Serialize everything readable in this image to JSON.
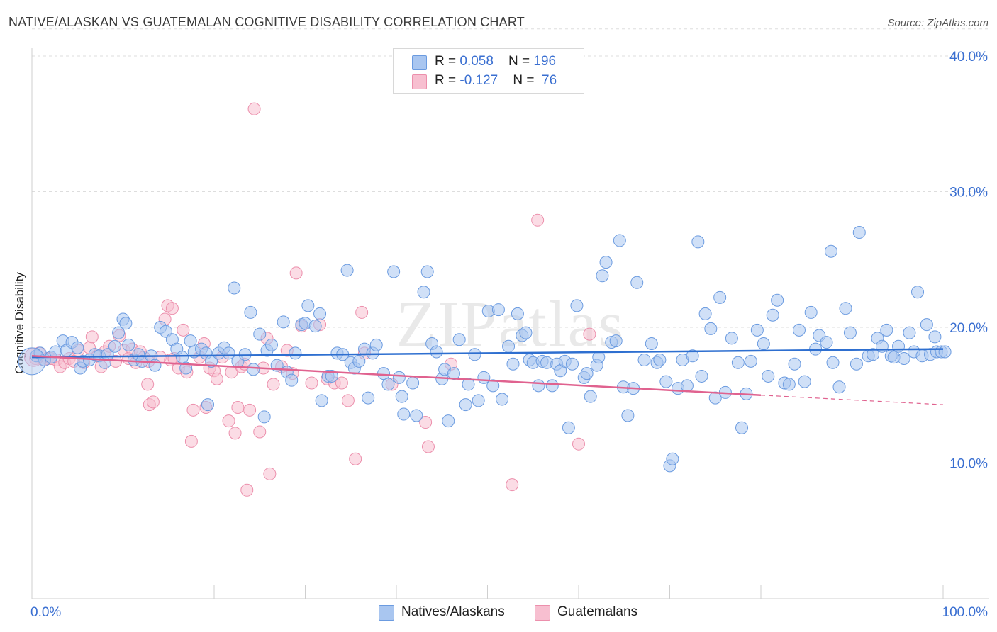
{
  "title": "NATIVE/ALASKAN VS GUATEMALAN COGNITIVE DISABILITY CORRELATION CHART",
  "source": "Source: ZipAtlas.com",
  "watermark": "ZIPatlas",
  "colors": {
    "blue_fill": "#a9c6f0",
    "blue_stroke": "#6b9be0",
    "blue_line": "#2e6fd0",
    "pink_fill": "#f7bfd0",
    "pink_stroke": "#ec8fac",
    "pink_line": "#e0628f",
    "tick_label": "#3a6fd1",
    "grid": "#dddddd"
  },
  "legend": {
    "rows": [
      {
        "r_label": "R = ",
        "r_value": "0.058",
        "n_label": "N = ",
        "n_value": "196"
      },
      {
        "r_label": "R = ",
        "r_value": "-0.127",
        "n_label": "N = ",
        "n_value": " 76"
      }
    ]
  },
  "bottom_legend": [
    "Natives/Alaskans",
    "Guatemalans"
  ],
  "chart_data": {
    "type": "scatter",
    "title": "NATIVE/ALASKAN VS GUATEMALAN COGNITIVE DISABILITY CORRELATION CHART",
    "xlabel": "",
    "ylabel": "Cognitive Disability",
    "xlim": [
      0,
      100
    ],
    "ylim": [
      0,
      42
    ],
    "x_tick_labels": [
      "0.0%",
      "100.0%"
    ],
    "y_ticks": [
      10,
      20,
      30,
      40
    ],
    "y_tick_labels": [
      "10.0%",
      "20.0%",
      "30.0%",
      "40.0%"
    ],
    "grid": true,
    "legend_position": "top-center",
    "series": [
      {
        "name": "Natives/Alaskans",
        "R": 0.058,
        "N": 196,
        "trend": {
          "x": [
            0,
            100
          ],
          "y": [
            17.8,
            18.4
          ]
        },
        "points": [
          [
            0.5,
            17.9
          ],
          [
            0.9,
            18.1
          ],
          [
            1.4,
            17.6
          ],
          [
            2.1,
            17.8
          ],
          [
            2.6,
            18.2
          ],
          [
            3.4,
            19.0
          ],
          [
            3.8,
            18.3
          ],
          [
            4.4,
            18.9
          ],
          [
            5.0,
            18.5
          ],
          [
            5.3,
            17.0
          ],
          [
            5.6,
            17.5
          ],
          [
            6.3,
            17.6
          ],
          [
            6.9,
            18.0
          ],
          [
            7.4,
            17.9
          ],
          [
            8.0,
            17.4
          ],
          [
            8.3,
            18.0
          ],
          [
            9.1,
            18.6
          ],
          [
            9.5,
            19.6
          ],
          [
            10.0,
            20.6
          ],
          [
            10.3,
            20.3
          ],
          [
            10.6,
            18.7
          ],
          [
            11.2,
            17.6
          ],
          [
            11.7,
            18.0
          ],
          [
            12.1,
            17.5
          ],
          [
            13.1,
            17.9
          ],
          [
            13.5,
            17.2
          ],
          [
            14.1,
            20.0
          ],
          [
            14.7,
            19.7
          ],
          [
            15.4,
            19.1
          ],
          [
            15.9,
            18.4
          ],
          [
            16.5,
            17.8
          ],
          [
            16.9,
            17.0
          ],
          [
            17.4,
            19.0
          ],
          [
            17.8,
            18.2
          ],
          [
            18.6,
            18.4
          ],
          [
            19.1,
            18.1
          ],
          [
            19.3,
            14.3
          ],
          [
            19.7,
            17.5
          ],
          [
            20.5,
            18.1
          ],
          [
            21.1,
            18.5
          ],
          [
            21.6,
            18.1
          ],
          [
            22.2,
            22.9
          ],
          [
            22.6,
            17.5
          ],
          [
            23.4,
            18.0
          ],
          [
            24.0,
            21.1
          ],
          [
            24.3,
            16.9
          ],
          [
            25.0,
            19.5
          ],
          [
            25.5,
            13.4
          ],
          [
            25.8,
            18.3
          ],
          [
            26.3,
            18.7
          ],
          [
            26.9,
            17.2
          ],
          [
            27.6,
            20.4
          ],
          [
            28.0,
            16.7
          ],
          [
            28.5,
            16.1
          ],
          [
            28.9,
            18.1
          ],
          [
            29.6,
            20.2
          ],
          [
            30.0,
            20.3
          ],
          [
            30.3,
            21.6
          ],
          [
            31.1,
            20.1
          ],
          [
            31.6,
            21.0
          ],
          [
            31.8,
            14.6
          ],
          [
            32.5,
            16.4
          ],
          [
            32.9,
            16.4
          ],
          [
            33.5,
            18.1
          ],
          [
            34.1,
            18.0
          ],
          [
            34.6,
            24.2
          ],
          [
            35.0,
            17.4
          ],
          [
            35.4,
            17.0
          ],
          [
            35.9,
            17.5
          ],
          [
            36.5,
            18.4
          ],
          [
            36.9,
            14.8
          ],
          [
            37.4,
            18.1
          ],
          [
            37.8,
            18.7
          ],
          [
            38.6,
            16.6
          ],
          [
            39.1,
            15.8
          ],
          [
            39.7,
            24.1
          ],
          [
            40.3,
            16.3
          ],
          [
            40.6,
            14.9
          ],
          [
            40.8,
            13.6
          ],
          [
            41.8,
            15.9
          ],
          [
            42.2,
            13.5
          ],
          [
            43.0,
            22.6
          ],
          [
            43.4,
            24.1
          ],
          [
            43.9,
            18.8
          ],
          [
            44.4,
            18.2
          ],
          [
            45.0,
            16.2
          ],
          [
            45.3,
            16.9
          ],
          [
            45.7,
            13.1
          ],
          [
            46.3,
            16.6
          ],
          [
            46.9,
            19.1
          ],
          [
            47.6,
            14.3
          ],
          [
            47.9,
            15.8
          ],
          [
            48.6,
            18.0
          ],
          [
            49.0,
            14.6
          ],
          [
            49.6,
            16.3
          ],
          [
            50.1,
            21.2
          ],
          [
            50.6,
            15.7
          ],
          [
            51.2,
            21.3
          ],
          [
            51.6,
            14.7
          ],
          [
            52.3,
            18.6
          ],
          [
            52.8,
            17.3
          ],
          [
            53.3,
            21.0
          ],
          [
            53.8,
            19.4
          ],
          [
            54.2,
            19.6
          ],
          [
            54.6,
            17.6
          ],
          [
            55.0,
            17.4
          ],
          [
            55.6,
            15.7
          ],
          [
            56.0,
            17.5
          ],
          [
            56.5,
            17.4
          ],
          [
            57.1,
            15.7
          ],
          [
            57.6,
            17.3
          ],
          [
            58.0,
            16.8
          ],
          [
            58.5,
            17.5
          ],
          [
            58.9,
            12.6
          ],
          [
            59.3,
            17.3
          ],
          [
            59.8,
            21.6
          ],
          [
            60.6,
            16.3
          ],
          [
            60.9,
            16.6
          ],
          [
            61.3,
            14.9
          ],
          [
            62.0,
            17.2
          ],
          [
            62.2,
            17.8
          ],
          [
            62.6,
            23.8
          ],
          [
            63.0,
            24.8
          ],
          [
            63.6,
            18.9
          ],
          [
            64.1,
            19.0
          ],
          [
            64.5,
            26.4
          ],
          [
            64.9,
            15.6
          ],
          [
            65.4,
            13.5
          ],
          [
            66.0,
            15.5
          ],
          [
            66.4,
            23.3
          ],
          [
            67.2,
            17.6
          ],
          [
            68.0,
            18.8
          ],
          [
            68.6,
            17.4
          ],
          [
            68.9,
            17.6
          ],
          [
            69.6,
            16.0
          ],
          [
            70.0,
            9.8
          ],
          [
            70.3,
            10.3
          ],
          [
            70.9,
            15.5
          ],
          [
            71.4,
            17.6
          ],
          [
            71.9,
            15.7
          ],
          [
            72.5,
            17.9
          ],
          [
            73.1,
            26.3
          ],
          [
            73.5,
            16.4
          ],
          [
            73.9,
            21.0
          ],
          [
            74.5,
            19.9
          ],
          [
            75.0,
            14.8
          ],
          [
            75.5,
            22.2
          ],
          [
            76.1,
            15.2
          ],
          [
            76.8,
            19.2
          ],
          [
            77.5,
            17.4
          ],
          [
            77.9,
            12.6
          ],
          [
            78.4,
            15.1
          ],
          [
            78.9,
            17.5
          ],
          [
            79.6,
            19.8
          ],
          [
            80.3,
            18.8
          ],
          [
            80.8,
            16.4
          ],
          [
            81.3,
            20.9
          ],
          [
            81.8,
            22.0
          ],
          [
            82.6,
            15.9
          ],
          [
            83.1,
            15.8
          ],
          [
            83.7,
            17.3
          ],
          [
            84.2,
            19.8
          ],
          [
            84.8,
            16.0
          ],
          [
            85.5,
            21.1
          ],
          [
            86.0,
            18.4
          ],
          [
            86.4,
            19.4
          ],
          [
            87.2,
            18.9
          ],
          [
            87.9,
            17.4
          ],
          [
            87.7,
            25.6
          ],
          [
            88.6,
            15.6
          ],
          [
            89.3,
            21.4
          ],
          [
            89.8,
            19.6
          ],
          [
            90.5,
            17.3
          ],
          [
            90.8,
            27.0
          ],
          [
            91.8,
            17.9
          ],
          [
            92.3,
            18.0
          ],
          [
            92.8,
            19.2
          ],
          [
            93.3,
            18.6
          ],
          [
            93.8,
            19.8
          ],
          [
            94.3,
            17.9
          ],
          [
            94.6,
            17.8
          ],
          [
            95.1,
            18.6
          ],
          [
            95.7,
            17.7
          ],
          [
            96.3,
            19.6
          ],
          [
            96.8,
            18.2
          ],
          [
            97.2,
            22.6
          ],
          [
            97.7,
            17.9
          ],
          [
            98.2,
            20.2
          ],
          [
            98.6,
            18.0
          ],
          [
            99.1,
            19.3
          ],
          [
            99.3,
            18.2
          ],
          [
            99.8,
            18.2
          ],
          [
            100.2,
            18.2
          ]
        ]
      },
      {
        "name": "Guatemalans",
        "R": -0.127,
        "N": 76,
        "trend": {
          "x": [
            0,
            80
          ],
          "y": [
            17.9,
            15.0
          ]
        },
        "trend_dashed": {
          "x": [
            80,
            100
          ],
          "y": [
            15.0,
            14.3
          ]
        },
        "points": [
          [
            0.4,
            17.7
          ],
          [
            0.8,
            18.1
          ],
          [
            1.3,
            17.6
          ],
          [
            1.7,
            17.7
          ],
          [
            2.1,
            17.7
          ],
          [
            2.7,
            17.6
          ],
          [
            3.1,
            17.1
          ],
          [
            3.6,
            17.4
          ],
          [
            4.1,
            17.7
          ],
          [
            4.6,
            17.5
          ],
          [
            5.1,
            18.3
          ],
          [
            5.7,
            17.4
          ],
          [
            6.3,
            18.5
          ],
          [
            6.6,
            19.3
          ],
          [
            7.2,
            17.9
          ],
          [
            7.6,
            17.1
          ],
          [
            8.0,
            18.2
          ],
          [
            8.5,
            18.6
          ],
          [
            9.2,
            17.5
          ],
          [
            9.6,
            19.4
          ],
          [
            10.1,
            18.3
          ],
          [
            10.6,
            17.7
          ],
          [
            11.0,
            18.4
          ],
          [
            11.4,
            17.4
          ],
          [
            11.9,
            18.2
          ],
          [
            12.3,
            17.8
          ],
          [
            12.8,
            17.5
          ],
          [
            12.7,
            15.8
          ],
          [
            12.9,
            14.3
          ],
          [
            13.3,
            14.5
          ],
          [
            14.1,
            17.8
          ],
          [
            14.6,
            20.6
          ],
          [
            14.9,
            21.6
          ],
          [
            15.2,
            17.6
          ],
          [
            15.4,
            21.4
          ],
          [
            15.6,
            17.7
          ],
          [
            16.1,
            17.0
          ],
          [
            16.6,
            19.8
          ],
          [
            17.0,
            16.7
          ],
          [
            17.5,
            11.6
          ],
          [
            17.7,
            13.9
          ],
          [
            18.4,
            17.8
          ],
          [
            18.9,
            18.8
          ],
          [
            19.1,
            14.1
          ],
          [
            19.5,
            17.0
          ],
          [
            20.0,
            16.8
          ],
          [
            20.3,
            16.2
          ],
          [
            20.9,
            17.8
          ],
          [
            21.6,
            13.1
          ],
          [
            21.9,
            16.7
          ],
          [
            22.3,
            12.2
          ],
          [
            22.6,
            14.1
          ],
          [
            23.0,
            17.1
          ],
          [
            23.3,
            17.3
          ],
          [
            23.6,
            8.0
          ],
          [
            23.9,
            13.9
          ],
          [
            24.4,
            36.1
          ],
          [
            25.0,
            12.3
          ],
          [
            25.4,
            17.0
          ],
          [
            25.8,
            19.2
          ],
          [
            26.1,
            9.2
          ],
          [
            26.5,
            15.8
          ],
          [
            27.4,
            17.1
          ],
          [
            28.0,
            18.3
          ],
          [
            28.6,
            16.6
          ],
          [
            29.0,
            24.0
          ],
          [
            29.6,
            20.1
          ],
          [
            30.7,
            15.9
          ],
          [
            31.6,
            20.2
          ],
          [
            32.4,
            16.2
          ],
          [
            33.2,
            15.9
          ],
          [
            34.0,
            15.9
          ],
          [
            34.7,
            14.6
          ],
          [
            35.5,
            10.3
          ],
          [
            36.5,
            18.1
          ],
          [
            36.2,
            21.1
          ],
          [
            39.5,
            15.8
          ],
          [
            43.2,
            13.0
          ],
          [
            43.5,
            11.2
          ],
          [
            46.0,
            17.3
          ],
          [
            52.7,
            8.4
          ],
          [
            55.5,
            27.9
          ],
          [
            60.0,
            11.4
          ],
          [
            61.2,
            19.5
          ]
        ]
      }
    ]
  }
}
